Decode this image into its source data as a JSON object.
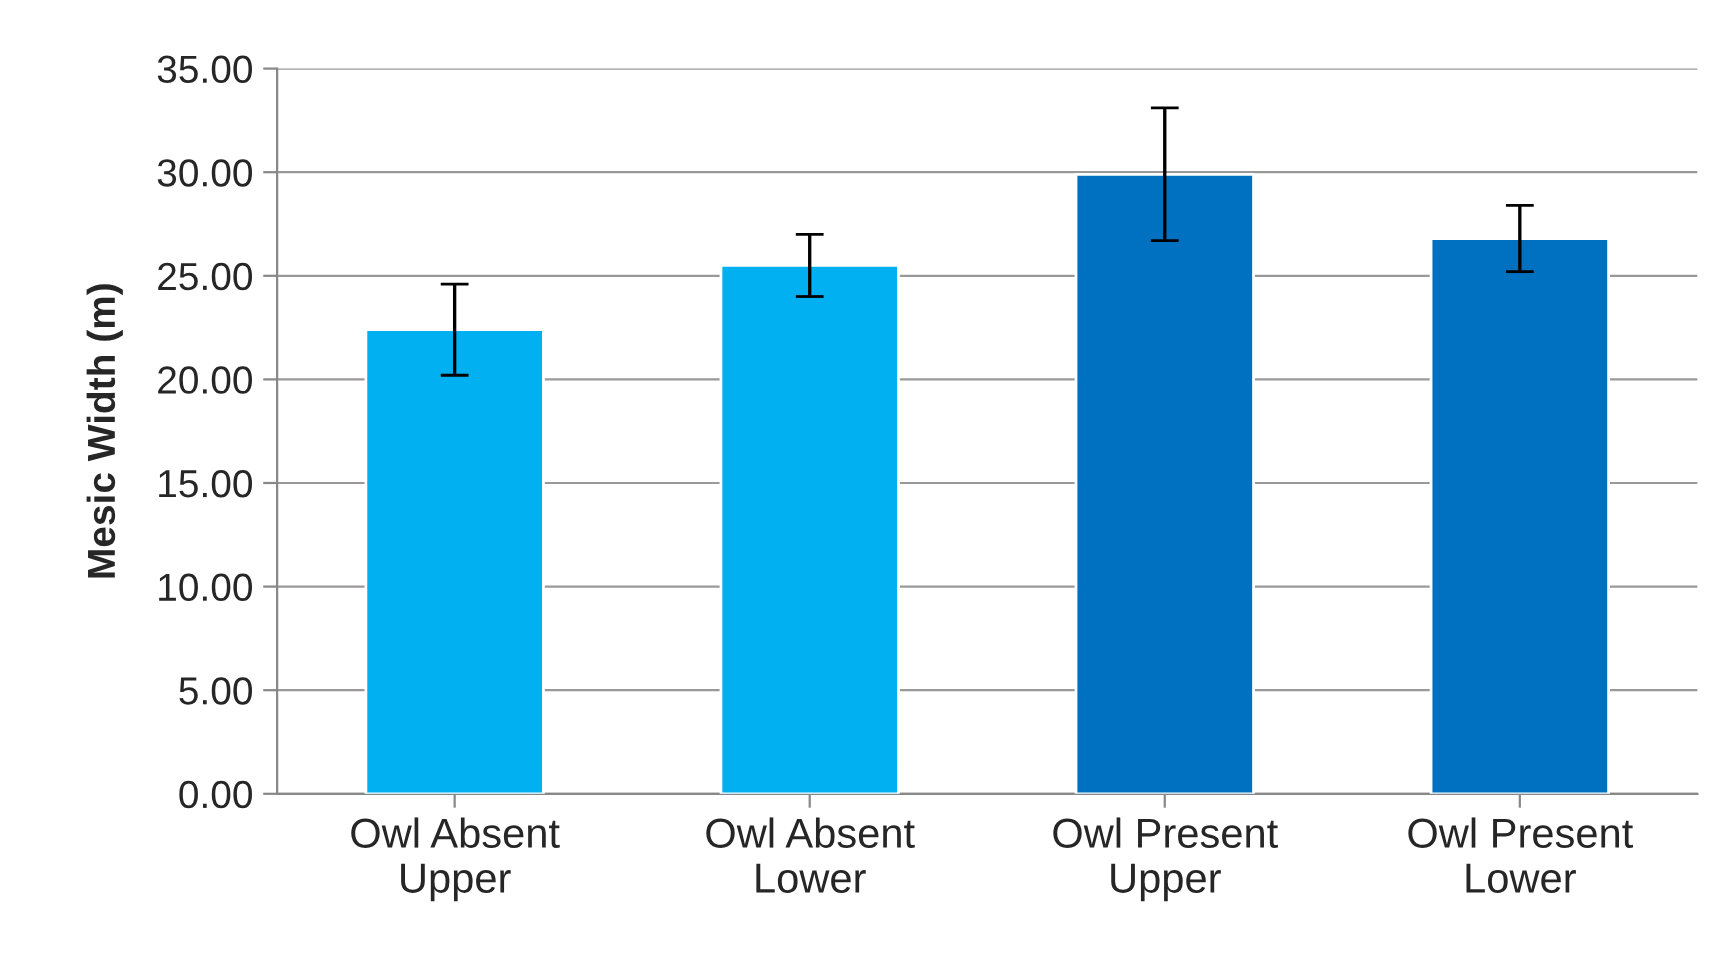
{
  "chart_data": {
    "type": "bar",
    "ylabel": "Mesic Width (m)",
    "categories": [
      "Owl Absent\nUpper",
      "Owl Absent\nLower",
      "Owl Present\nUpper",
      "Owl Present\nLower"
    ],
    "values": [
      22.4,
      25.5,
      29.9,
      26.8
    ],
    "errors": [
      2.2,
      1.5,
      3.2,
      1.6
    ],
    "colors": [
      "#00b0f0",
      "#00b0f0",
      "#0070c0",
      "#0070c0"
    ],
    "ylim": [
      0,
      35
    ],
    "yticks": [
      {
        "value": 0,
        "label": "0.00"
      },
      {
        "value": 5,
        "label": "5.00"
      },
      {
        "value": 10,
        "label": "10.00"
      },
      {
        "value": 15,
        "label": "15.00"
      },
      {
        "value": 20,
        "label": "20.00"
      },
      {
        "value": 25,
        "label": "25.00"
      },
      {
        "value": 30,
        "label": "30.00"
      },
      {
        "value": 35,
        "label": "35.00"
      }
    ],
    "grid": "y",
    "legend": false
  }
}
